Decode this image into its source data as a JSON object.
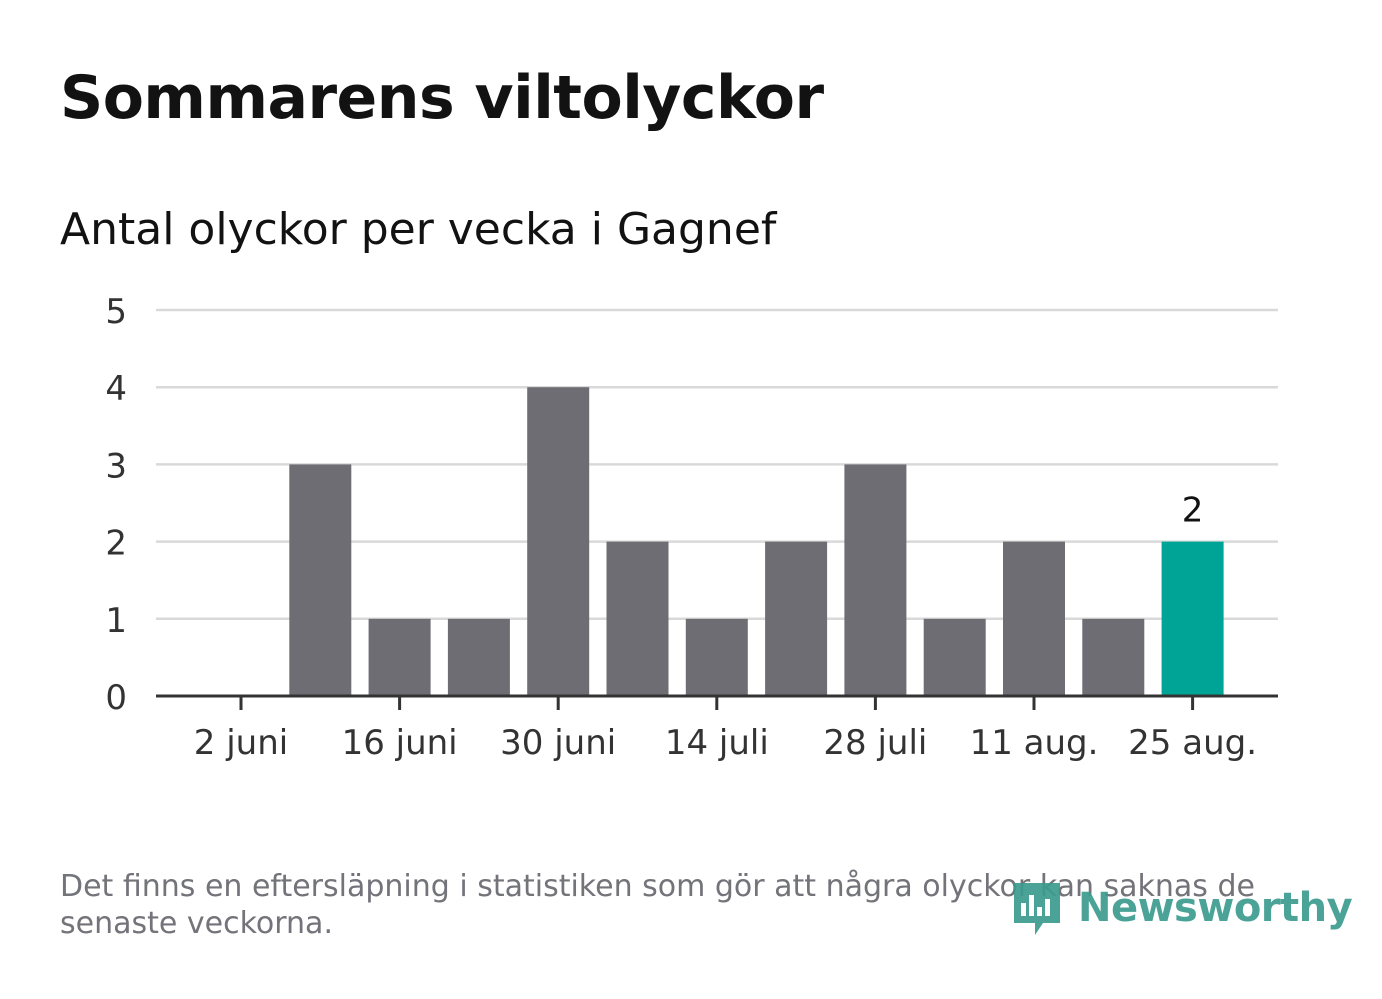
{
  "title": "Sommarens viltolyckor",
  "subtitle": "Antal olyckor per vecka i Gagnef",
  "footnote": "Det finns en eftersläpning i statistiken som gör att några olyckor kan saknas de senaste veckorna.",
  "brand": {
    "name": "Newsworthy",
    "icon": "newsworthy-logo-icon"
  },
  "colors": {
    "bar": "#6e6d74",
    "highlight": "#00a497",
    "grid": "#d9d9d9",
    "axis": "#333333",
    "text": "#121212",
    "muted": "#73737a",
    "brand": "#3c9c8f"
  },
  "chart_data": {
    "type": "bar",
    "title": "Sommarens viltolyckor",
    "subtitle": "Antal olyckor per vecka i Gagnef",
    "xlabel": "",
    "ylabel": "",
    "x_tick_labels": [
      "2 juni",
      "16 juni",
      "30 juni",
      "14 juli",
      "28 juli",
      "11 aug.",
      "25 aug."
    ],
    "y_ticks": [
      "0",
      "1",
      "2",
      "3",
      "4",
      "5"
    ],
    "ylim": [
      0,
      5
    ],
    "grid": true,
    "values": [
      0,
      3,
      1,
      1,
      4,
      2,
      1,
      2,
      3,
      1,
      2,
      1,
      2
    ],
    "highlight_index": 12,
    "data_labels": [
      {
        "index": 12,
        "text": "2"
      }
    ]
  }
}
